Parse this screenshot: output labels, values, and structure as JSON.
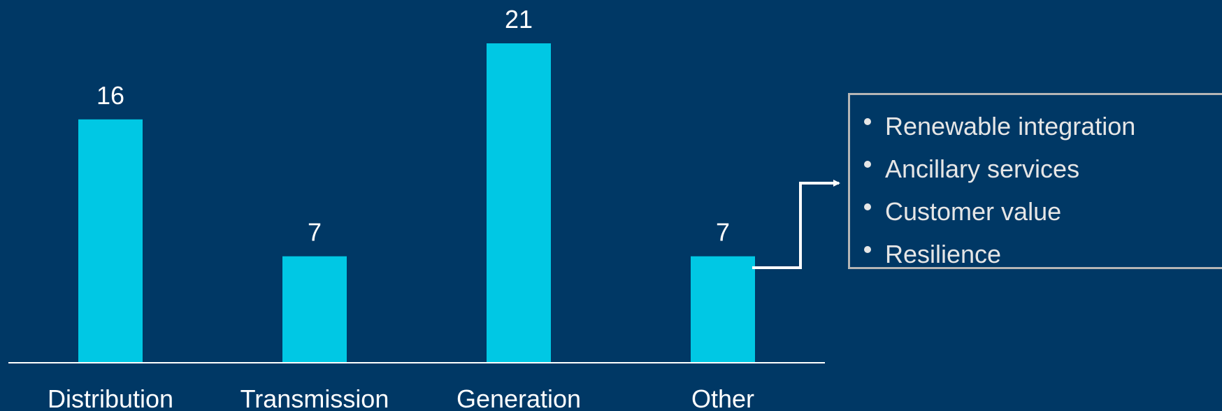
{
  "chart_data": {
    "type": "bar",
    "categories": [
      "Distribution",
      "Transmission",
      "Generation",
      "Other"
    ],
    "values": [
      16,
      7,
      21,
      7
    ],
    "data_labels": [
      "16",
      "7",
      "21",
      "7"
    ],
    "title": "",
    "xlabel": "",
    "ylabel": "",
    "ylim": [
      0,
      21
    ],
    "grid": false,
    "legend": "none",
    "bar_color": "#00c8e4",
    "axis_color": "#ffffff",
    "background_color": "#003865"
  },
  "callout": {
    "points_to": "Other",
    "items": [
      {
        "label": "Renewable integration"
      },
      {
        "label": "Ancillary services"
      },
      {
        "label": "Customer value"
      },
      {
        "label": "Resilience"
      }
    ]
  }
}
